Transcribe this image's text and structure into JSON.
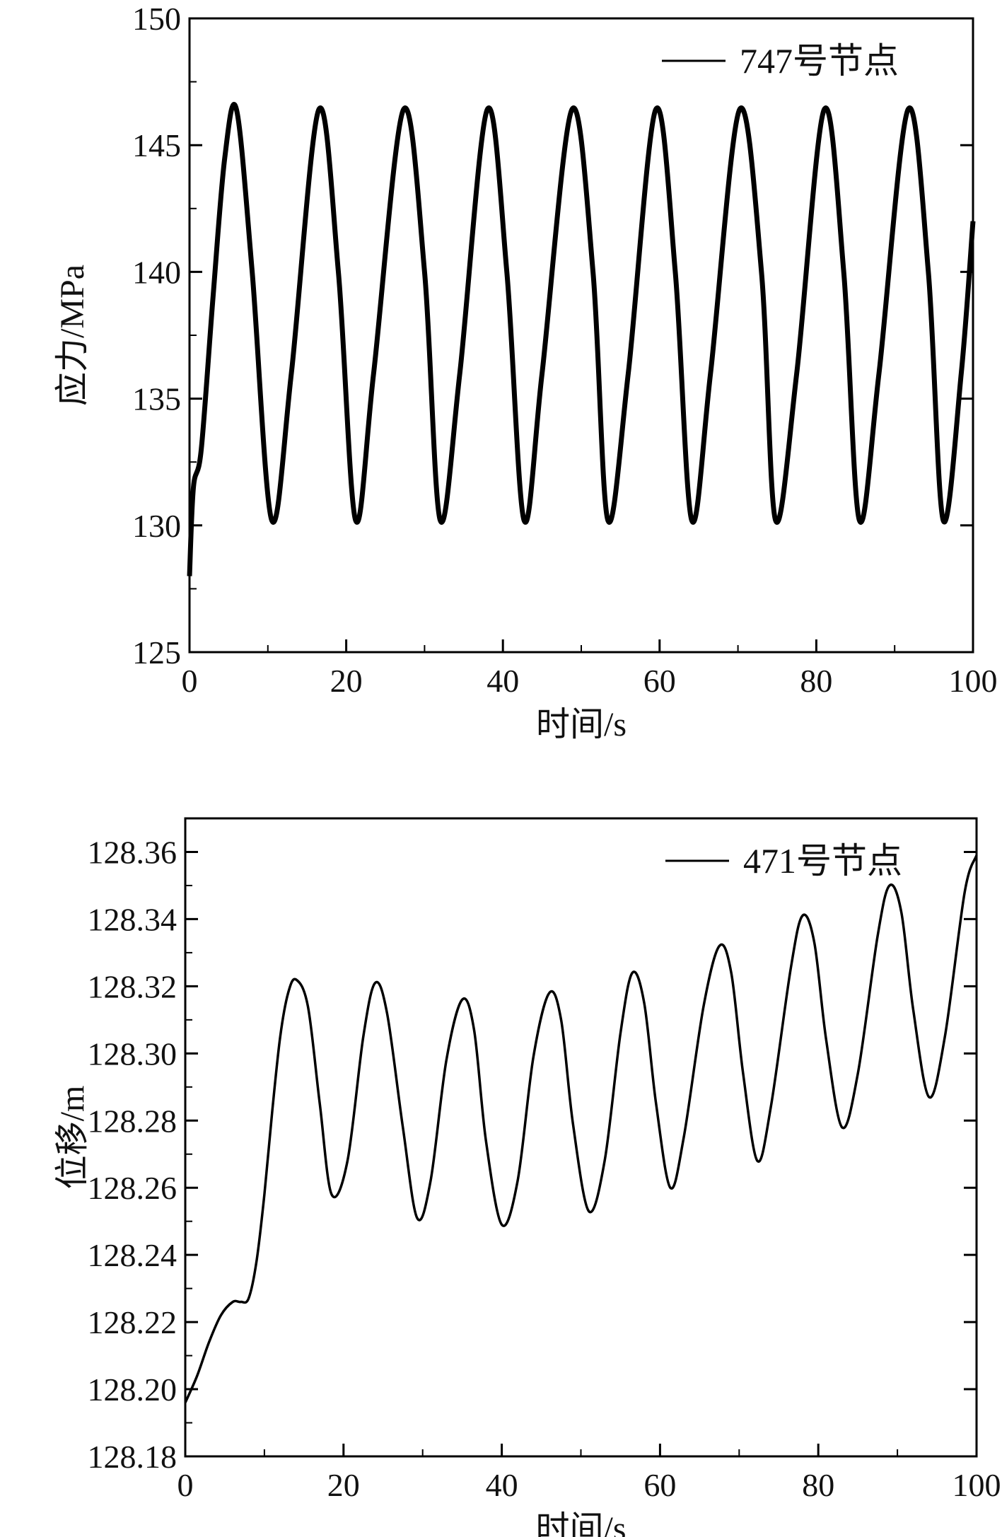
{
  "chart_data": [
    {
      "type": "line",
      "title": "",
      "xlabel": "时间/s",
      "ylabel": "应力/MPa",
      "xlim": [
        0,
        100
      ],
      "ylim": [
        125,
        150
      ],
      "xticks": [
        0,
        20,
        40,
        60,
        80,
        100
      ],
      "yticks": [
        125,
        130,
        135,
        140,
        145,
        150
      ],
      "grid": false,
      "legend_position": "top-right",
      "series": [
        {
          "name": "747号节点",
          "color": "#000000",
          "x": [
            0,
            0.5,
            1.5,
            3.0,
            4.5,
            6.0,
            8.0,
            10.5,
            13.0,
            16.5,
            19.0,
            21.2,
            23.5,
            27.3,
            30.0,
            32.0,
            34.5,
            38.0,
            40.5,
            42.7,
            45.0,
            48.8,
            51.5,
            53.4,
            56.0,
            59.5,
            62.0,
            64.1,
            66.5,
            70.2,
            73.0,
            74.8,
            77.5,
            81.0,
            83.5,
            85.5,
            88.0,
            91.7,
            94.3,
            96.2,
            98.5,
            100.0
          ],
          "y": [
            128.0,
            131.5,
            133.0,
            139.0,
            144.5,
            146.4,
            140.0,
            130.2,
            136.0,
            146.4,
            140.0,
            130.2,
            136.0,
            146.4,
            140.0,
            130.2,
            136.0,
            146.4,
            140.0,
            130.2,
            136.0,
            146.4,
            140.0,
            130.2,
            136.0,
            146.4,
            140.0,
            130.2,
            136.0,
            146.4,
            140.0,
            130.2,
            136.0,
            146.4,
            140.0,
            130.2,
            136.0,
            146.4,
            140.0,
            130.2,
            136.0,
            142.0
          ]
        }
      ]
    },
    {
      "type": "line",
      "title": "",
      "xlabel": "时间/s",
      "ylabel": "位移/m",
      "xlim": [
        0,
        100
      ],
      "ylim": [
        128.18,
        128.37
      ],
      "xticks": [
        0,
        20,
        40,
        60,
        80,
        100
      ],
      "yticks": [
        "128.18",
        "128.20",
        "128.22",
        "128.24",
        "128.26",
        "128.28",
        "128.30",
        "128.32",
        "128.34",
        "128.36"
      ],
      "grid": false,
      "legend_position": "top-right",
      "series": [
        {
          "name": "471号节点",
          "color": "#000000",
          "x": [
            0,
            1.5,
            3.0,
            4.5,
            6.0,
            7.0,
            8.0,
            9.0,
            10.0,
            11.0,
            12.0,
            13.0,
            14.0,
            15.5,
            17.0,
            18.5,
            20.5,
            22.5,
            24.0,
            25.5,
            27.5,
            29.3,
            31.0,
            33.0,
            35.0,
            36.5,
            38.0,
            40.0,
            42.0,
            44.0,
            46.0,
            47.5,
            49.0,
            51.0,
            53.0,
            55.0,
            56.5,
            58.0,
            59.5,
            61.3,
            63.0,
            65.5,
            67.5,
            69.0,
            70.5,
            72.3,
            74.0,
            76.5,
            78.0,
            79.5,
            81.0,
            83.0,
            85.0,
            87.5,
            89.0,
            90.5,
            92.0,
            94.0,
            96.0,
            98.5,
            100.0
          ],
          "y": [
            128.196,
            128.204,
            128.214,
            128.222,
            128.226,
            128.226,
            128.227,
            128.238,
            128.258,
            128.283,
            128.305,
            128.318,
            128.322,
            128.314,
            128.285,
            128.258,
            128.268,
            128.305,
            128.321,
            128.312,
            128.278,
            128.251,
            128.262,
            128.298,
            128.316,
            128.307,
            128.274,
            128.249,
            128.262,
            128.299,
            128.318,
            128.31,
            128.279,
            128.253,
            128.268,
            128.306,
            128.324,
            128.315,
            128.285,
            128.26,
            128.275,
            128.314,
            128.332,
            128.324,
            128.294,
            128.268,
            128.284,
            128.325,
            128.341,
            128.333,
            128.304,
            128.278,
            128.294,
            128.335,
            128.35,
            128.342,
            128.313,
            128.287,
            128.305,
            128.348,
            128.359
          ]
        }
      ]
    }
  ]
}
